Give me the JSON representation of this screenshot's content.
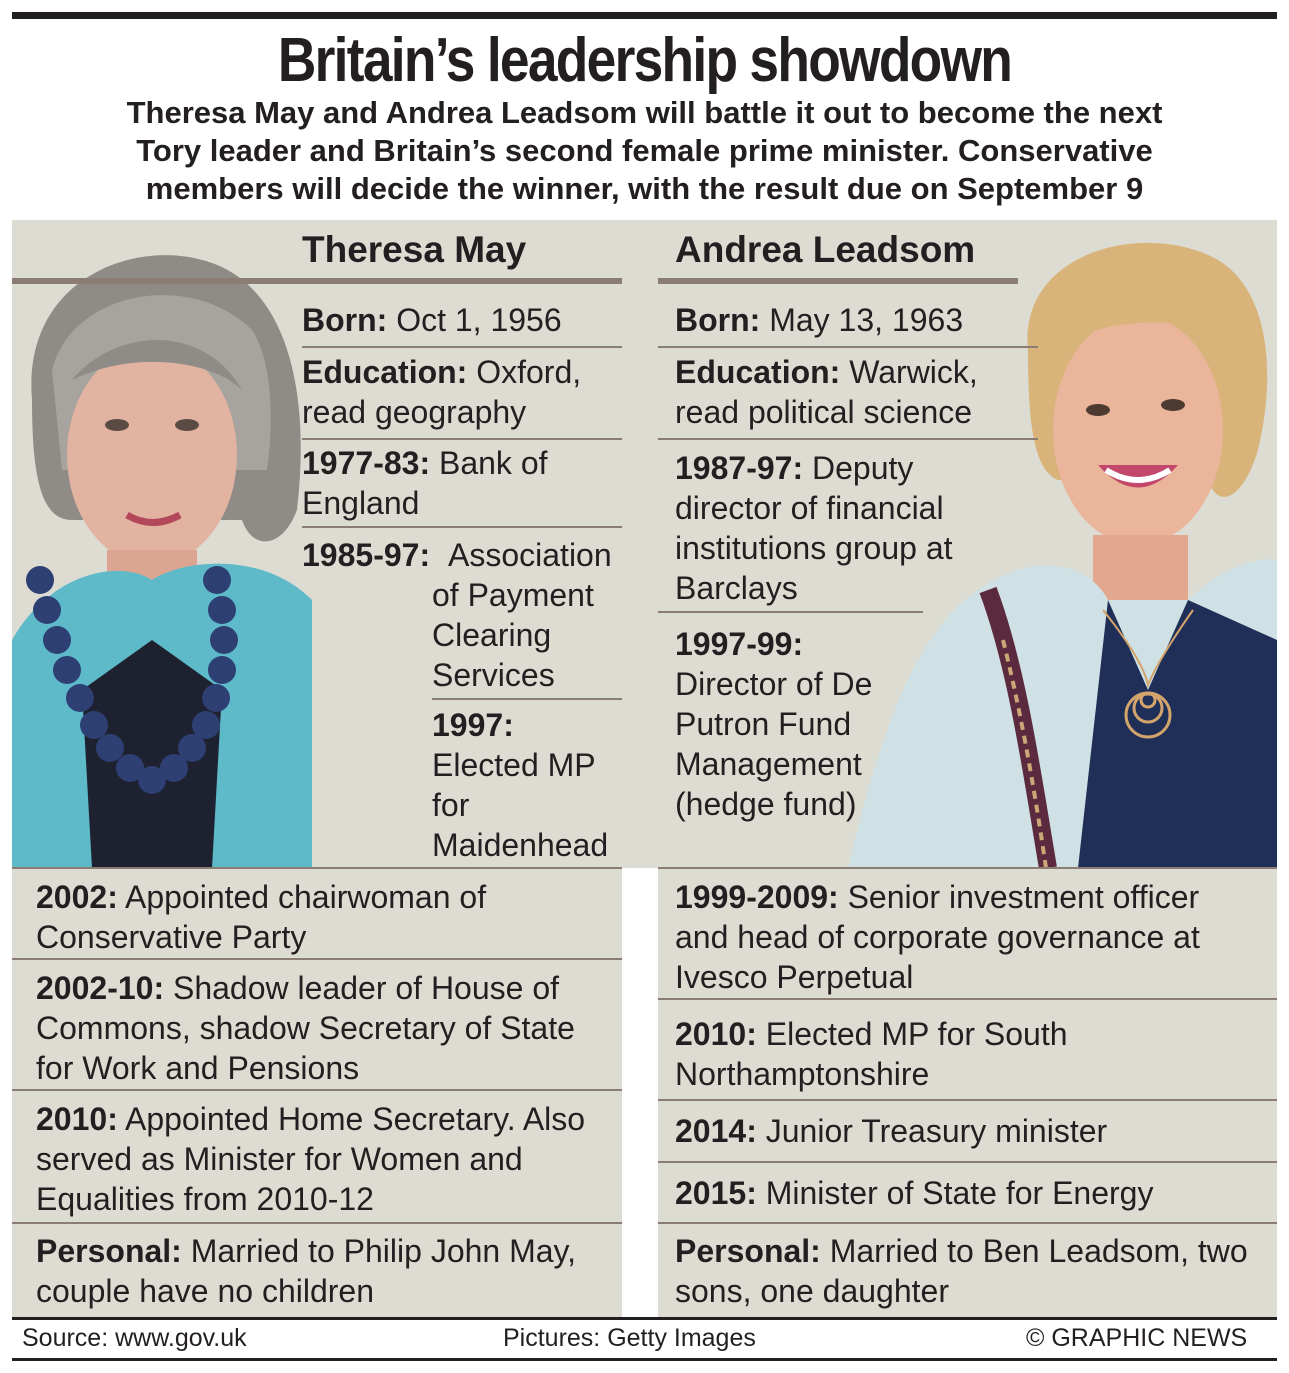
{
  "headline": "Britain’s leadership showdown",
  "standfirst": [
    "Theresa May and Andrea Leadsom will battle it out to become the next",
    "Tory leader and Britain’s second female prime minister. Conservative",
    "members will decide the winner, with the result due on September 9"
  ],
  "may": {
    "name": "Theresa May",
    "entries": [
      {
        "k": "Born:",
        "v": "Oct 1, 1956"
      },
      {
        "k": "Education:",
        "v": "Oxford, read geography"
      },
      {
        "k": "1977-83:",
        "v": "Bank of England"
      },
      {
        "k": "1985-97:",
        "v": "Association of Payment Clearing Services"
      },
      {
        "k": "1997:",
        "v": "Elected MP for Maidenhead"
      },
      {
        "k": "2002:",
        "v": "Appointed chairwoman of Conservative Party"
      },
      {
        "k": "2002-10:",
        "v": "Shadow leader of House of Commons, shadow Secretary of State for Work and Pensions"
      },
      {
        "k": "2010:",
        "v": "Appointed Home Secretary. Also served as Minister for Women and Equalities from 2010-12"
      },
      {
        "k": "Personal:",
        "v": "Married to Philip John May, couple have no children"
      }
    ]
  },
  "leadsom": {
    "name": "Andrea Leadsom",
    "entries": [
      {
        "k": "Born:",
        "v": "May 13, 1963"
      },
      {
        "k": "Education:",
        "v": "Warwick, read political science"
      },
      {
        "k": "1987-97:",
        "v": "Deputy director of financial institutions group at Barclays"
      },
      {
        "k": "1997-99:",
        "v": "Director of De Putron Fund Management (hedge fund)"
      },
      {
        "k": "1999-2009:",
        "v": "Senior investment officer and head of corporate governance at Ivesco Perpetual"
      },
      {
        "k": "2010:",
        "v": "Elected MP for South Northamptonshire"
      },
      {
        "k": "2014:",
        "v": "Junior Treasury minister"
      },
      {
        "k": "2015:",
        "v": "Minister of State for Energy"
      },
      {
        "k": "Personal:",
        "v": "Married to Ben Leadsom, two sons, one daughter"
      }
    ]
  },
  "footer": {
    "source": "Source: www.gov.uk",
    "pictures": "Pictures: Getty Images",
    "credit": "© GRAPHIC NEWS"
  },
  "colors": {
    "panel": "#dddcd3",
    "rule": "#8b7d73",
    "text": "#231f20",
    "may_jacket": "#5eb9c9",
    "may_necklace": "#2d3f73",
    "leadsom_jacket": "#cfe1e5"
  },
  "icons": [
    "theresa-may-photo",
    "andrea-leadsom-photo"
  ]
}
